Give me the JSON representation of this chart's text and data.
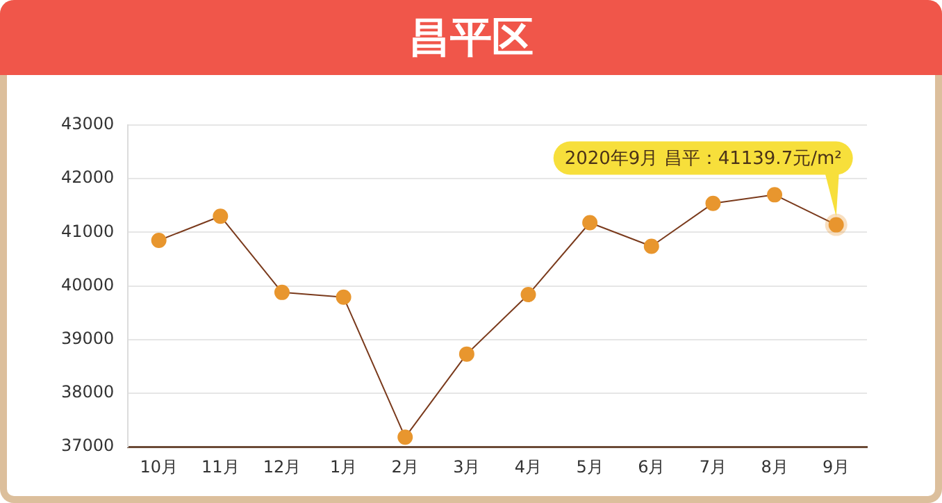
{
  "chart_data": {
    "type": "line",
    "title": "昌平区",
    "categories": [
      "10月",
      "11月",
      "12月",
      "1月",
      "2月",
      "3月",
      "4月",
      "5月",
      "6月",
      "7月",
      "8月",
      "9月"
    ],
    "series": [
      {
        "color": "#e8962e",
        "values": [
          40850,
          41300,
          39880,
          39790,
          37180,
          38730,
          39840,
          41180,
          40740,
          41540,
          41700,
          41139.7
        ]
      }
    ],
    "ylim": [
      37000,
      43000
    ],
    "yticks": [
      37000,
      38000,
      39000,
      40000,
      41000,
      42000,
      43000
    ],
    "grid": "y",
    "legend": false,
    "marker": "circle",
    "line_style": "solid",
    "annotations": [
      {
        "text": "2020年9月 昌平：41139.7元/m²",
        "x": "9月",
        "y": 41139.7
      }
    ]
  }
}
